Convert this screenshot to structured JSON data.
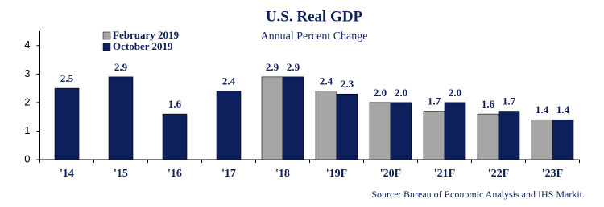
{
  "chart_data": {
    "type": "bar",
    "title": "U.S. Real GDP",
    "subtitle": "Annual Percent Change",
    "categories": [
      "'14",
      "'15",
      "'16",
      "'17",
      "'18",
      "'19F",
      "'20F",
      "'21F",
      "'22F",
      "'23F"
    ],
    "series": [
      {
        "name": "February 2019",
        "color": "#a6a6a6",
        "values": [
          null,
          null,
          null,
          null,
          2.9,
          2.4,
          2,
          1.7,
          1.6,
          1.4
        ],
        "value_labels": [
          null,
          null,
          null,
          null,
          "2.9",
          "2.4",
          "2.0",
          "1.7",
          "1.6",
          "1.4"
        ]
      },
      {
        "name": "October 2019",
        "color": "#0d1f5c",
        "values": [
          2.5,
          2.9,
          1.6,
          2.4,
          2.9,
          2.3,
          2,
          2,
          1.7,
          1.4
        ],
        "value_labels": [
          "2.5",
          "2.9",
          "1.6",
          "2.4",
          "2.9",
          "2.3",
          "2.0",
          "2.0",
          "1.7",
          "1.4"
        ]
      }
    ],
    "ylim": [
      0,
      4.5
    ],
    "yticks": [
      0,
      1,
      2,
      3,
      4
    ],
    "grid": false,
    "source": "Source:  Bureau of Economic Analysis and IHS Markit."
  }
}
